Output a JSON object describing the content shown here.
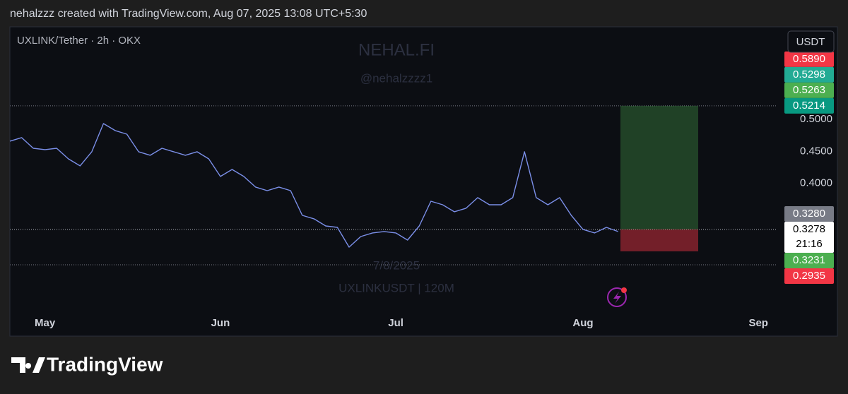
{
  "header": "nehalzzz created with TradingView.com, Aug 07, 2025 13:08 UTC+5:30",
  "logo": "TradingView",
  "chart_data": {
    "type": "line",
    "symbol": "UXLINK/Tether · 2h · OKX",
    "currency": "USDT",
    "watermarks": [
      "NEHAL.FI",
      "@nehalzzzz1",
      "7/8/2025",
      "UXLINKUSDT | 120M"
    ],
    "color": "#7b8fe8",
    "categories": [
      null,
      null,
      null,
      "May",
      null,
      null,
      null,
      null,
      null,
      null,
      null,
      null,
      null,
      null,
      null,
      null,
      null,
      null,
      "Jun",
      null,
      null,
      null,
      null,
      null,
      null,
      null,
      null,
      null,
      null,
      null,
      null,
      null,
      null,
      "Jul",
      null,
      null,
      null,
      null,
      null,
      null,
      null,
      null,
      null,
      null,
      null,
      null,
      null,
      null,
      null,
      "Aug",
      null,
      null,
      null,
      null,
      null,
      null,
      null,
      null,
      null,
      null,
      null,
      null,
      null,
      null,
      "Sep",
      null
    ],
    "values": [
      0.4661,
      0.4716,
      0.455,
      0.4528,
      0.455,
      0.4384,
      0.4274,
      0.4495,
      0.4937,
      0.4827,
      0.4771,
      0.4495,
      0.444,
      0.455,
      0.4495,
      0.444,
      0.4495,
      0.4384,
      0.4108,
      0.4218,
      0.4108,
      0.3942,
      0.3886,
      0.3942,
      0.3886,
      0.3499,
      0.3444,
      0.3333,
      0.3311,
      0.3001,
      0.3167,
      0.3223,
      0.3245,
      0.3223,
      0.3112,
      0.3333,
      0.372,
      0.3665,
      0.3555,
      0.361,
      0.3776,
      0.3665,
      0.3665,
      0.3776,
      0.4495,
      0.3776,
      0.3665,
      0.3776,
      0.3499,
      0.3278,
      0.3223,
      0.3311,
      0.3245,
      null,
      null,
      null,
      null,
      null,
      null,
      null,
      null,
      null,
      null,
      null,
      null,
      null
    ],
    "ylim": [
      0.195,
      0.643
    ],
    "yticks": [
      {
        "value": 0.5,
        "label": "0.5000"
      },
      {
        "value": 0.45,
        "label": "0.4500"
      },
      {
        "value": 0.4,
        "label": "0.4000"
      }
    ],
    "price_labels": [
      {
        "value": 0.589,
        "label": "0.5890",
        "color": "#f23645"
      },
      {
        "value": 0.5298,
        "label": "0.5298",
        "color": "#22ab94"
      },
      {
        "value": 0.5263,
        "label": "0.5263",
        "color": "#4caf50"
      },
      {
        "value": 0.5214,
        "label": "0.5214",
        "color": "#089981"
      },
      {
        "value": 0.328,
        "label": "0.3280",
        "color": "#787b86"
      },
      {
        "value": 0.3278,
        "label": "0.3278",
        "color": "#ffffff",
        "time": "21:16"
      },
      {
        "value": 0.3231,
        "label": "0.3231",
        "color": "#4caf50"
      },
      {
        "value": 0.2935,
        "label": "0.2935",
        "color": "#f23645"
      }
    ]
  }
}
